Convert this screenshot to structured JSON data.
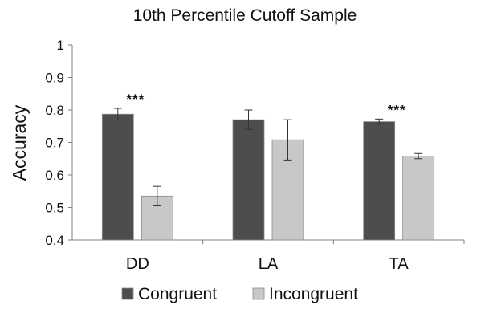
{
  "chart_data": {
    "type": "bar",
    "title": "10th Percentile Cutoff Sample",
    "xlabel": "",
    "ylabel": "Accuracy",
    "ylim": [
      0.4,
      1.0
    ],
    "yticks": [
      "0.4",
      "0.5",
      "0.6",
      "0.7",
      "0.8",
      "0.9",
      "1"
    ],
    "categories": [
      "DD",
      "LA",
      "TA"
    ],
    "series": [
      {
        "name": "Congruent",
        "color": "#4d4d4d",
        "values": [
          0.787,
          0.77,
          0.764
        ],
        "errors": [
          0.018,
          0.03,
          0.008
        ]
      },
      {
        "name": "Incongruent",
        "color": "#c8c8c8",
        "values": [
          0.535,
          0.708,
          0.658
        ],
        "errors": [
          0.03,
          0.062,
          0.008
        ]
      }
    ],
    "annotations": [
      {
        "category": "DD",
        "text": "***"
      },
      {
        "category": "TA",
        "text": "***"
      }
    ],
    "grid": false,
    "legend_position": "bottom"
  }
}
